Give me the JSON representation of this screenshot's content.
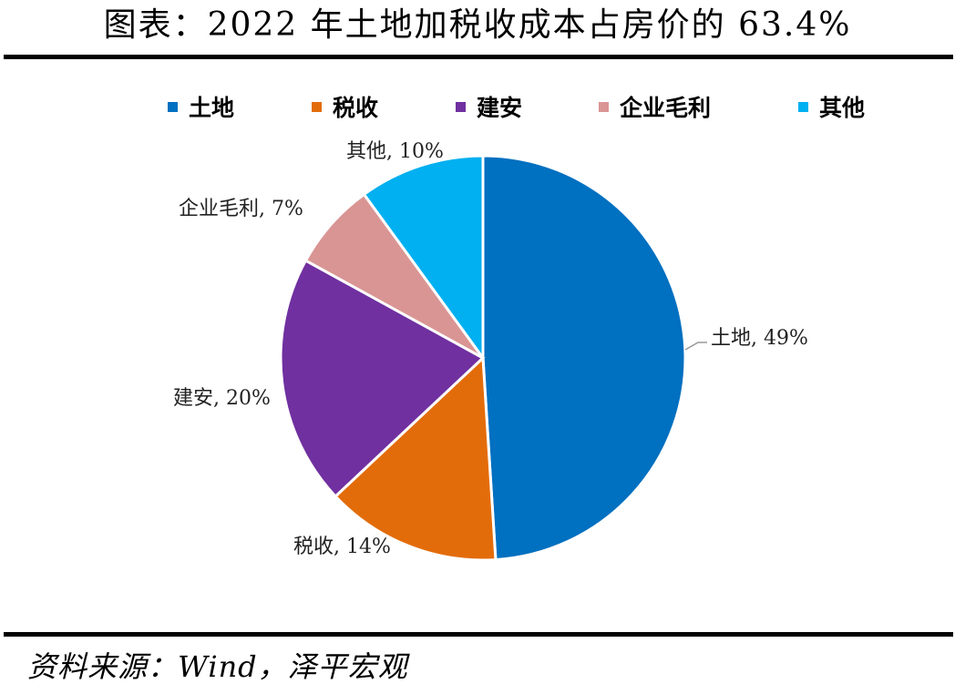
{
  "title": "图表：2022 年土地加税收成本占房价的 63.4%",
  "source": "资料来源：Wind，泽平宏观",
  "chart_data": {
    "type": "pie",
    "title": "图表：2022 年土地加税收成本占房价的 63.4%",
    "legend_position": "top",
    "categories": [
      "土地",
      "税收",
      "建安",
      "企业毛利",
      "其他"
    ],
    "values": [
      49,
      14,
      20,
      7,
      10
    ],
    "unit": "%",
    "colors": [
      "#0070C0",
      "#E36C0A",
      "#7030A0",
      "#D99594",
      "#00B0F0"
    ],
    "data_labels": [
      "土地, 49%",
      "税收, 14%",
      "建安, 20%",
      "企业毛利, 7%",
      "其他, 10%"
    ],
    "start_angle_deg": 0,
    "direction": "clockwise"
  }
}
